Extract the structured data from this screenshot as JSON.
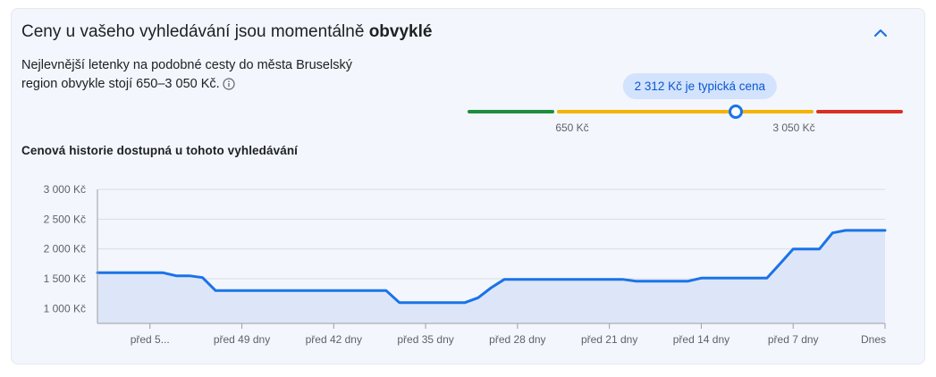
{
  "header": {
    "title_prefix": "Ceny u vašeho vyhledávání jsou momentálně ",
    "title_emphasis": "obvyklé"
  },
  "description": {
    "line1": "Nejlevnější letenky na podobné cesty do města Bruselský",
    "line2": "region obvykle stojí 650–3 050 Kč."
  },
  "gauge": {
    "typical_label": "2 312 Kč je typická cena",
    "low_label": "650 Kč",
    "high_label": "3 050 Kč",
    "low_value": 650,
    "high_value": 3050,
    "current_value": 2312,
    "colors": {
      "low": "#1e8e3e",
      "typical": "#f4b400",
      "high": "#d93025",
      "marker": "#1a73e8"
    }
  },
  "history": {
    "title": "Cenová historie dostupná u tohoto vyhledávání"
  },
  "chart_data": {
    "type": "area",
    "ylim": [
      750,
      3000
    ],
    "xlim": [
      -60,
      0
    ],
    "y_ticks": [
      3000,
      2500,
      2000,
      1500,
      1000
    ],
    "y_tick_labels": [
      "3 000 Kč",
      "2 500 Kč",
      "2 000 Kč",
      "1 500 Kč",
      "1 000 Kč"
    ],
    "x_ticks": [
      -56,
      -49,
      -42,
      -35,
      -28,
      -21,
      -14,
      -7,
      0
    ],
    "x_tick_labels": [
      "před 5...",
      "před 49 dny",
      "před 42 dny",
      "před 35 dny",
      "před 28 dny",
      "před 21 dny",
      "před 14 dny",
      "před 7 dny",
      "Dnes"
    ],
    "grid": true,
    "line_color": "#1a73e8",
    "fill_color": "#dde6f8",
    "series": [
      {
        "x": [
          -60,
          -55,
          -54,
          -53,
          -52,
          -51,
          -50,
          -49,
          -48,
          -47,
          -46,
          -45,
          -44,
          -43,
          -42,
          -41,
          -40,
          -39,
          -38,
          -37,
          -36,
          -35,
          -34,
          -33,
          -32,
          -31,
          -30,
          -29,
          -28,
          -27,
          -26,
          -25,
          -24,
          -23,
          -22,
          -21,
          -20,
          -19,
          -18,
          -17,
          -16,
          -15,
          -14,
          -13,
          -12,
          -11,
          -10,
          -9,
          -8,
          -7,
          -6,
          -5,
          -4,
          -3,
          -2,
          -1,
          0
        ],
        "y": [
          1600,
          1600,
          1550,
          1550,
          1520,
          1300,
          1300,
          1300,
          1300,
          1300,
          1300,
          1300,
          1300,
          1300,
          1300,
          1300,
          1300,
          1300,
          1300,
          1100,
          1100,
          1100,
          1100,
          1100,
          1100,
          1180,
          1350,
          1490,
          1490,
          1490,
          1490,
          1490,
          1490,
          1490,
          1490,
          1490,
          1490,
          1460,
          1460,
          1460,
          1460,
          1460,
          1510,
          1510,
          1510,
          1510,
          1510,
          1510,
          1750,
          2000,
          2000,
          2000,
          2270,
          2312,
          2312,
          2312,
          2312
        ]
      }
    ]
  }
}
